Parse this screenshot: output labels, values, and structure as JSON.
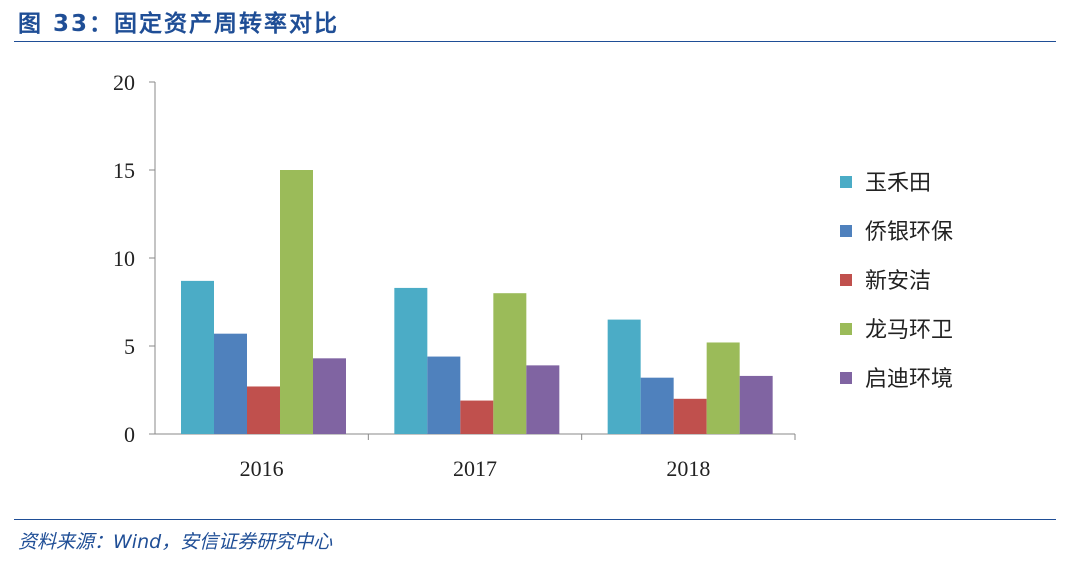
{
  "title": "图 33：固定资产周转率对比",
  "source": "资料来源：Wind，安信证券研究中心",
  "chart_data": {
    "type": "bar",
    "title": "固定资产周转率对比",
    "categories": [
      "2016",
      "2017",
      "2018"
    ],
    "series": [
      {
        "name": "玉禾田",
        "color": "#4bacc6",
        "values": [
          8.7,
          8.3,
          6.5
        ]
      },
      {
        "name": "侨银环保",
        "color": "#4f81bd",
        "values": [
          5.7,
          4.4,
          3.2
        ]
      },
      {
        "name": "新安洁",
        "color": "#c0504d",
        "values": [
          2.7,
          1.9,
          2.0
        ]
      },
      {
        "name": "龙马环卫",
        "color": "#9bbb59",
        "values": [
          15.0,
          8.0,
          5.2
        ]
      },
      {
        "name": "启迪环境",
        "color": "#8064a2",
        "values": [
          4.3,
          3.9,
          3.3
        ]
      }
    ],
    "yticks": [
      "0",
      "5",
      "10",
      "15",
      "20"
    ],
    "ylim": [
      0,
      20
    ],
    "legend": "right",
    "xlabel": "",
    "ylabel": ""
  }
}
